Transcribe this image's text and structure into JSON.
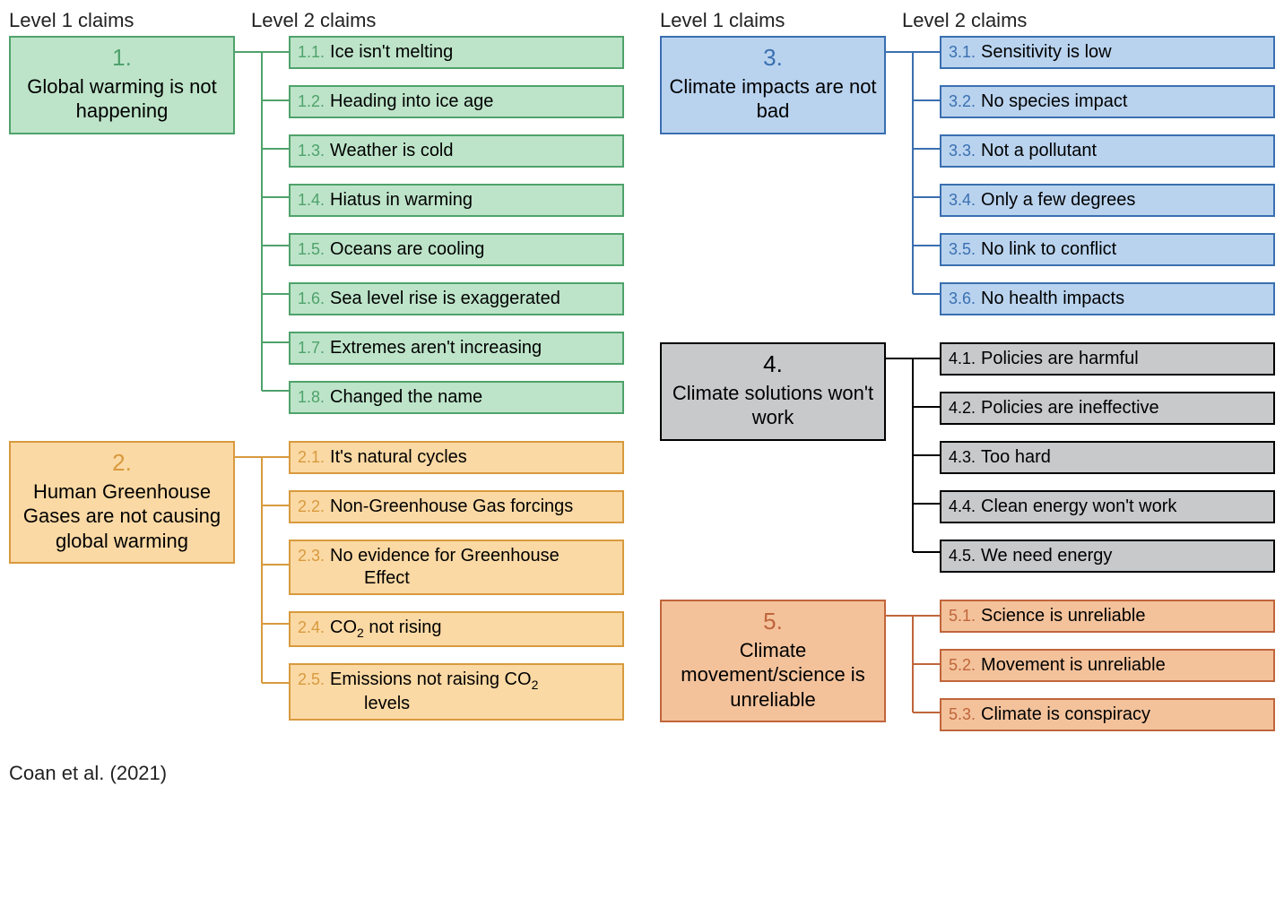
{
  "headers": {
    "l1": "Level 1 claims",
    "l2": "Level 2 claims"
  },
  "citation": "Coan et al. (2021)",
  "palette": {
    "green": {
      "fill": "#bde4c9",
      "border": "#4fa26b",
      "num": "#4fa26b",
      "text": "#000000"
    },
    "orange": {
      "fill": "#fbd9a4",
      "border": "#d89a3e",
      "num": "#d89a3e",
      "text": "#000000"
    },
    "blue": {
      "fill": "#b9d3ef",
      "border": "#3a6fb0",
      "num": "#3a6fb0",
      "text": "#000000"
    },
    "grey": {
      "fill": "#c8c9cb",
      "border": "#000000",
      "num": "#000000",
      "text": "#000000"
    },
    "brown": {
      "fill": "#f3c29b",
      "border": "#c0653b",
      "num": "#c0653b",
      "text": "#000000"
    }
  },
  "columns": [
    {
      "groups": [
        {
          "color": "green",
          "l1": {
            "num": "1.",
            "title": "Global warming is not happening"
          },
          "l2": [
            {
              "num": "1.1.",
              "text": "Ice isn't melting"
            },
            {
              "num": "1.2.",
              "text": "Heading into ice age"
            },
            {
              "num": "1.3.",
              "text": "Weather is cold"
            },
            {
              "num": "1.4.",
              "text": "Hiatus in warming"
            },
            {
              "num": "1.5.",
              "text": "Oceans are cooling"
            },
            {
              "num": "1.6.",
              "text": "Sea level rise is exaggerated"
            },
            {
              "num": "1.7.",
              "text": "Extremes aren't increasing"
            },
            {
              "num": "1.8.",
              "text": "Changed the name"
            }
          ]
        },
        {
          "color": "orange",
          "l1": {
            "num": "2.",
            "title": "Human Greenhouse Gases are not causing global warming"
          },
          "l2": [
            {
              "num": "2.1.",
              "text": "It's natural cycles"
            },
            {
              "num": "2.2.",
              "text": "Non-Greenhouse Gas forcings"
            },
            {
              "num": "2.3.",
              "text": "No evidence for Greenhouse",
              "text2": "Effect"
            },
            {
              "num": "2.4.",
              "text": "CO₂ not rising"
            },
            {
              "num": "2.5.",
              "text": "Emissions not raising CO₂",
              "text2": "levels"
            }
          ]
        }
      ]
    },
    {
      "groups": [
        {
          "color": "blue",
          "l1": {
            "num": "3.",
            "title": "Climate impacts are not bad"
          },
          "l2": [
            {
              "num": "3.1.",
              "text": "Sensitivity is low"
            },
            {
              "num": "3.2.",
              "text": "No species impact"
            },
            {
              "num": "3.3.",
              "text": "Not a pollutant"
            },
            {
              "num": "3.4.",
              "text": "Only a few degrees"
            },
            {
              "num": "3.5.",
              "text": "No link to conflict"
            },
            {
              "num": "3.6.",
              "text": "No health impacts"
            }
          ]
        },
        {
          "color": "grey",
          "l1": {
            "num": "4.",
            "title": "Climate solutions won't work"
          },
          "l2": [
            {
              "num": "4.1.",
              "text": "Policies are harmful"
            },
            {
              "num": "4.2.",
              "text": "Policies are ineffective"
            },
            {
              "num": "4.3.",
              "text": "Too hard"
            },
            {
              "num": "4.4.",
              "text": "Clean energy won't work"
            },
            {
              "num": "4.5.",
              "text": "We need energy"
            }
          ]
        },
        {
          "color": "brown",
          "l1": {
            "num": "5.",
            "title": "Climate movement/science is unreliable"
          },
          "l2": [
            {
              "num": "5.1.",
              "text": "Science is unreliable"
            },
            {
              "num": "5.2.",
              "text": "Movement is unreliable"
            },
            {
              "num": "5.3.",
              "text": "Climate is conspiracy"
            }
          ]
        }
      ]
    }
  ],
  "layout": {
    "l2_box_height_single": 36,
    "l2_box_height_double": 60,
    "l2_gap": 18,
    "connector_width": 60,
    "l1_box_width": 252
  }
}
